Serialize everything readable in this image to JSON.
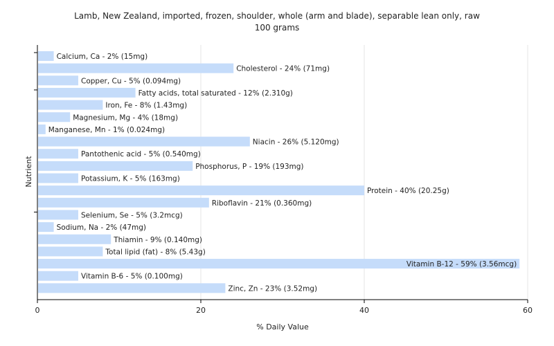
{
  "chart_data": {
    "type": "bar",
    "orientation": "horizontal",
    "title": "Lamb, New Zealand, imported, frozen, shoulder, whole (arm and blade), separable lean only, raw",
    "subtitle": "100 grams",
    "xlabel": "% Daily Value",
    "ylabel": "Nutrient",
    "xlim": [
      0,
      60
    ],
    "xticks": [
      0,
      20,
      40,
      60
    ],
    "grid": true,
    "bar_color": "#c5dcfa",
    "categories": [
      "Calcium, Ca",
      "Cholesterol",
      "Copper, Cu",
      "Fatty acids, total saturated",
      "Iron, Fe",
      "Magnesium, Mg",
      "Manganese, Mn",
      "Niacin",
      "Pantothenic acid",
      "Phosphorus, P",
      "Potassium, K",
      "Protein",
      "Riboflavin",
      "Selenium, Se",
      "Sodium, Na",
      "Thiamin",
      "Total lipid (fat)",
      "Vitamin B-12",
      "Vitamin B-6",
      "Zinc, Zn"
    ],
    "values": [
      2,
      24,
      5,
      12,
      8,
      4,
      1,
      26,
      5,
      19,
      5,
      40,
      21,
      5,
      2,
      9,
      8,
      59,
      5,
      23
    ],
    "labels": [
      "Calcium, Ca - 2% (15mg)",
      "Cholesterol - 24% (71mg)",
      "Copper, Cu - 5% (0.094mg)",
      "Fatty acids, total saturated - 12% (2.310g)",
      "Iron, Fe - 8% (1.43mg)",
      "Magnesium, Mg - 4% (18mg)",
      "Manganese, Mn - 1% (0.024mg)",
      "Niacin - 26% (5.120mg)",
      "Pantothenic acid - 5% (0.540mg)",
      "Phosphorus, P - 19% (193mg)",
      "Potassium, K - 5% (163mg)",
      "Protein - 40% (20.25g)",
      "Riboflavin - 21% (0.360mg)",
      "Selenium, Se - 5% (3.2mcg)",
      "Sodium, Na - 2% (47mg)",
      "Thiamin - 9% (0.140mg)",
      "Total lipid (fat) - 8% (5.43g)",
      "Vitamin B-12 - 59% (3.56mcg)",
      "Vitamin B-6 - 5% (0.100mg)",
      "Zinc, Zn - 23% (3.52mg)"
    ]
  }
}
